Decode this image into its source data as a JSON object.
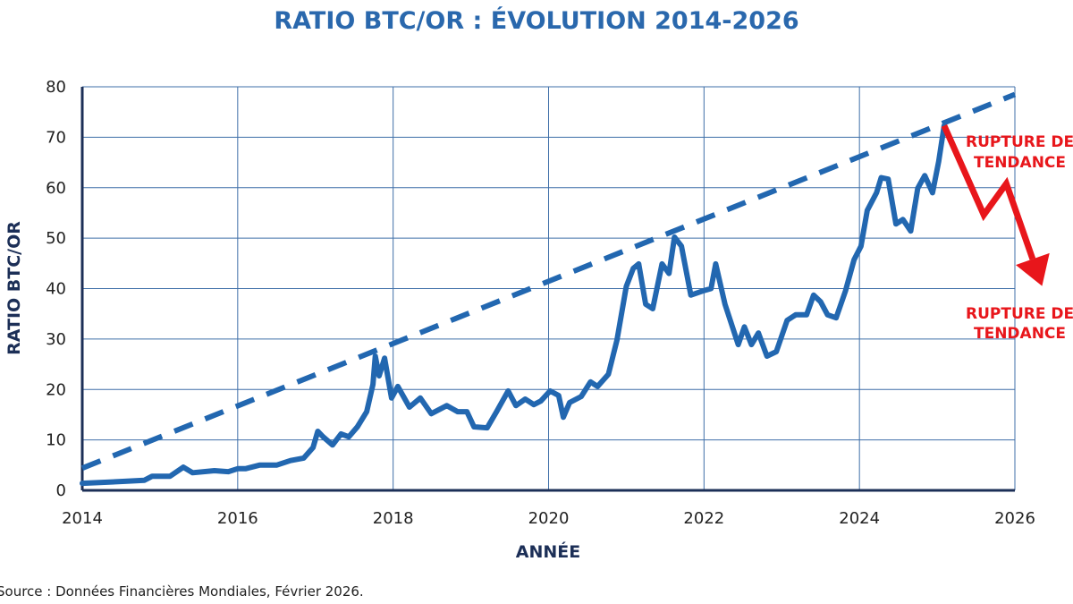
{
  "chart_data": {
    "type": "line",
    "title": "RATIO BTC/OR : ÉVOLUTION 2014-2026",
    "xlabel": "ANNÉE",
    "ylabel": "RATIO BTC/OR",
    "xlim": [
      2014,
      2026
    ],
    "ylim": [
      0,
      80
    ],
    "xticks": [
      2014,
      2016,
      2018,
      2020,
      2022,
      2024,
      2026
    ],
    "yticks": [
      0,
      10,
      20,
      30,
      40,
      50,
      60,
      70,
      80
    ],
    "grid": true,
    "series": [
      {
        "style": "solid",
        "x": [
          2014.0,
          2014.55,
          2014.8,
          2014.9,
          2015.13,
          2015.3,
          2015.42,
          2015.7,
          2015.88,
          2016.0,
          2016.1,
          2016.28,
          2016.5,
          2016.68,
          2016.85,
          2016.97,
          2017.03,
          2017.1,
          2017.22,
          2017.33,
          2017.43,
          2017.54,
          2017.66,
          2017.74,
          2017.77,
          2017.82,
          2017.89,
          2017.98,
          2018.06,
          2018.21,
          2018.35,
          2018.49,
          2018.69,
          2018.83,
          2018.95,
          2019.04,
          2019.21,
          2019.33,
          2019.48,
          2019.58,
          2019.7,
          2019.81,
          2019.9,
          2020.02,
          2020.13,
          2020.19,
          2020.27,
          2020.42,
          2020.54,
          2020.63,
          2020.77,
          2020.88,
          2021.0,
          2021.09,
          2021.16,
          2021.25,
          2021.34,
          2021.46,
          2021.55,
          2021.62,
          2021.71,
          2021.83,
          2021.98,
          2022.09,
          2022.15,
          2022.27,
          2022.44,
          2022.52,
          2022.61,
          2022.7,
          2022.81,
          2022.93,
          2023.07,
          2023.18,
          2023.32,
          2023.41,
          2023.5,
          2023.59,
          2023.7,
          2023.82,
          2023.93,
          2024.02,
          2024.1,
          2024.22,
          2024.28,
          2024.37,
          2024.47,
          2024.56,
          2024.66,
          2024.75,
          2024.84,
          2024.94,
          2025.02,
          2025.09
        ],
        "y": [
          1.4,
          1.8,
          2.0,
          2.8,
          2.8,
          4.6,
          3.5,
          3.9,
          3.7,
          4.3,
          4.3,
          5.0,
          5.0,
          5.9,
          6.4,
          8.5,
          11.7,
          10.6,
          9.0,
          11.2,
          10.6,
          12.6,
          15.6,
          21.0,
          26.6,
          22.7,
          26.2,
          18.3,
          20.6,
          16.5,
          18.3,
          15.2,
          16.8,
          15.6,
          15.6,
          12.6,
          12.4,
          15.6,
          19.7,
          16.8,
          18.1,
          17.0,
          17.7,
          19.7,
          18.8,
          14.5,
          17.4,
          18.6,
          21.5,
          20.6,
          23.0,
          29.8,
          40.4,
          44.0,
          44.9,
          36.9,
          36.0,
          44.9,
          43.0,
          50.2,
          48.4,
          38.7,
          39.5,
          40.0,
          44.9,
          36.9,
          28.9,
          32.4,
          28.9,
          31.2,
          26.6,
          27.5,
          33.7,
          34.8,
          34.8,
          38.7,
          37.4,
          34.8,
          34.2,
          39.5,
          45.7,
          48.4,
          55.5,
          59.0,
          62.0,
          61.7,
          52.8,
          53.7,
          51.4,
          59.9,
          62.4,
          59.0,
          65.2,
          72.3
        ]
      },
      {
        "style": "dashed",
        "x": [
          2014,
          2026
        ],
        "y": [
          4.4,
          78.5
        ]
      }
    ],
    "annotations": {
      "arrow": {
        "x": [
          2025.09,
          2025.6,
          2025.89,
          2026.35
        ],
        "y": [
          72.3,
          54.6,
          60.8,
          40.5
        ]
      },
      "labels": [
        {
          "line1": "RUPTURE DE",
          "line2": "TENDANCE"
        },
        {
          "line1": "RUPTURE DE",
          "line2": "TENDANCE"
        }
      ]
    },
    "source": "Source : Données Financières Mondiales, Février 2026.",
    "colors": {
      "line": "#2267b0",
      "title": "#2a68ad",
      "axis_label": "#1c2f57",
      "grid": "#3f6fa8",
      "arrow": "#e8161b"
    }
  }
}
